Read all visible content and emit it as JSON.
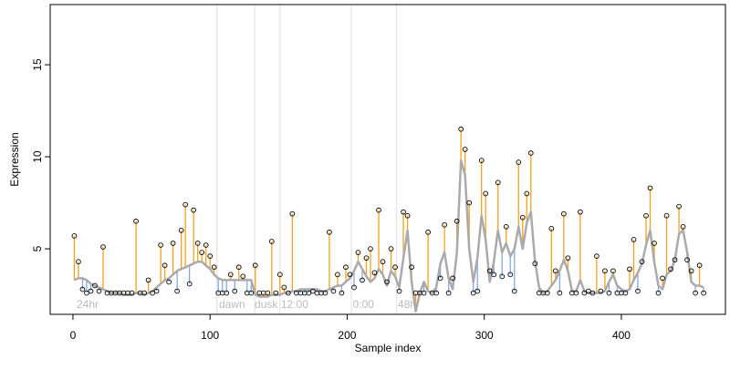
{
  "chart_data": {
    "type": "stem",
    "xlabel": "Sample index",
    "ylabel": "Expression",
    "xlim": [
      -16.6,
      475.9
    ],
    "ylim": [
      1.44,
      18.27
    ],
    "xticks": [
      0,
      100,
      200,
      300,
      400
    ],
    "yticks": [
      5,
      10,
      15
    ],
    "point_color": "#000000",
    "smooth_color": "#aaaaaa",
    "up_color": "#f5a01e",
    "down_color": "#84a9e3",
    "guide_color": "#e0e0e0",
    "label_color": "#bbbbbb",
    "vlines": [
      105,
      132.5,
      151,
      203,
      236
    ],
    "annotations": [
      {
        "text": "24hr",
        "x": 2.7
      },
      {
        "text": "dawn",
        "x": 106.5
      },
      {
        "text": "dusk",
        "x": 132.5
      },
      {
        "text": "12:00",
        "x": 151.7
      },
      {
        "text": "0:00",
        "x": 204
      },
      {
        "text": "48h",
        "x": 237
      }
    ],
    "x": [
      1,
      4,
      7,
      10,
      13,
      16,
      19,
      22,
      25,
      28,
      31,
      34,
      37,
      40,
      43,
      46,
      49,
      52,
      55,
      58,
      61,
      64,
      67,
      70,
      73,
      76,
      79,
      82,
      85,
      88,
      91,
      94,
      97,
      100,
      103,
      106,
      109,
      112,
      115,
      118,
      121,
      124,
      127,
      130,
      133,
      136,
      139,
      142,
      145,
      148,
      151,
      154,
      157,
      160,
      163,
      166,
      169,
      172,
      175,
      178,
      181,
      184,
      187,
      190,
      193,
      196,
      199,
      202,
      205,
      208,
      211,
      214,
      217,
      220,
      223,
      226,
      229,
      232,
      235,
      238,
      241,
      244,
      247,
      250,
      253,
      256,
      259,
      262,
      265,
      268,
      271,
      274,
      277,
      280,
      283,
      286,
      289,
      292,
      295,
      298,
      301,
      304,
      307,
      310,
      313,
      316,
      319,
      322,
      325,
      328,
      331,
      334,
      337,
      340,
      343,
      346,
      349,
      352,
      355,
      358,
      361,
      364,
      367,
      370,
      373,
      376,
      379,
      382,
      385,
      388,
      391,
      394,
      397,
      400,
      403,
      406,
      409,
      412,
      415,
      418,
      421,
      424,
      427,
      430,
      433,
      436,
      439,
      442,
      445,
      448,
      451,
      454,
      457,
      460
    ],
    "values": [
      5.7,
      4.3,
      2.8,
      2.6,
      2.7,
      3.0,
      2.7,
      5.1,
      2.6,
      2.6,
      2.6,
      2.6,
      2.6,
      2.6,
      2.6,
      6.5,
      2.6,
      2.6,
      3.3,
      2.6,
      2.7,
      5.2,
      4.1,
      3.2,
      5.3,
      2.7,
      6.0,
      7.4,
      3.1,
      7.1,
      5.3,
      4.8,
      5.2,
      4.6,
      4.0,
      2.6,
      2.6,
      2.6,
      3.6,
      2.7,
      4.0,
      3.5,
      2.6,
      2.6,
      4.1,
      2.6,
      2.6,
      2.6,
      5.4,
      2.6,
      3.6,
      2.9,
      2.6,
      6.9,
      2.6,
      2.6,
      2.6,
      2.6,
      2.7,
      2.6,
      2.6,
      2.6,
      5.9,
      2.7,
      3.6,
      2.6,
      4.0,
      3.6,
      2.9,
      4.8,
      3.3,
      4.5,
      5.0,
      3.7,
      7.1,
      4.3,
      3.2,
      5.0,
      4.0,
      2.7,
      7.0,
      6.8,
      4.0,
      2.6,
      2.6,
      2.6,
      5.9,
      2.6,
      2.6,
      3.4,
      6.3,
      2.6,
      3.4,
      6.5,
      11.5,
      10.4,
      7.5,
      2.6,
      2.7,
      9.8,
      8.0,
      3.8,
      3.6,
      8.6,
      3.5,
      6.2,
      3.6,
      2.7,
      9.7,
      6.7,
      8.0,
      10.2,
      4.2,
      2.6,
      2.6,
      2.6,
      6.1,
      3.8,
      2.6,
      6.9,
      4.5,
      2.6,
      2.6,
      7.0,
      2.6,
      2.7,
      2.6,
      4.6,
      2.7,
      3.8,
      2.6,
      3.8,
      2.6,
      2.6,
      2.6,
      3.9,
      5.5,
      2.7,
      4.3,
      6.8,
      8.3,
      5.3,
      2.6,
      3.4,
      6.8,
      3.9,
      4.4,
      7.3,
      6.2,
      4.4,
      3.8,
      2.6,
      4.1,
      2.6
    ],
    "smooth": [
      3.3,
      3.4,
      3.4,
      3.3,
      3.1,
      3.0,
      2.9,
      2.8,
      2.7,
      2.6,
      2.6,
      2.6,
      2.5,
      2.5,
      2.5,
      2.6,
      2.6,
      2.5,
      2.6,
      2.7,
      2.9,
      3.1,
      3.3,
      3.4,
      3.6,
      3.8,
      3.9,
      4.0,
      4.1,
      4.2,
      4.3,
      4.3,
      4.1,
      3.9,
      3.6,
      3.4,
      3.3,
      3.3,
      3.3,
      3.3,
      3.3,
      3.3,
      3.3,
      3.3,
      2.5,
      2.4,
      2.4,
      2.4,
      2.5,
      2.5,
      2.5,
      2.6,
      2.6,
      2.7,
      2.7,
      2.8,
      2.8,
      2.8,
      2.8,
      2.8,
      2.7,
      2.7,
      2.8,
      2.9,
      3.0,
      3.0,
      3.2,
      3.4,
      3.8,
      4.3,
      3.9,
      3.5,
      3.2,
      3.4,
      3.9,
      3.6,
      3.0,
      3.8,
      3.5,
      2.9,
      4.5,
      6.0,
      3.2,
      1.6,
      2.6,
      3.2,
      2.7,
      2.6,
      2.9,
      4.2,
      4.8,
      3.4,
      2.8,
      4.8,
      9.8,
      9.0,
      5.0,
      3.2,
      4.5,
      6.8,
      5.5,
      3.2,
      4.3,
      6.0,
      4.8,
      5.3,
      4.6,
      5.0,
      6.2,
      5.0,
      6.4,
      7.0,
      4.3,
      2.9,
      2.6,
      2.7,
      3.0,
      3.3,
      3.8,
      4.4,
      3.8,
      2.7,
      2.7,
      3.3,
      2.7,
      2.6,
      2.6,
      2.6,
      2.6,
      2.7,
      3.2,
      3.6,
      3.0,
      2.8,
      2.7,
      2.8,
      3.3,
      3.7,
      4.2,
      5.2,
      6.0,
      4.3,
      3.0,
      2.8,
      3.6,
      3.8,
      4.4,
      5.8,
      6.0,
      4.8,
      3.2,
      3.0,
      3.0,
      2.9
    ]
  }
}
